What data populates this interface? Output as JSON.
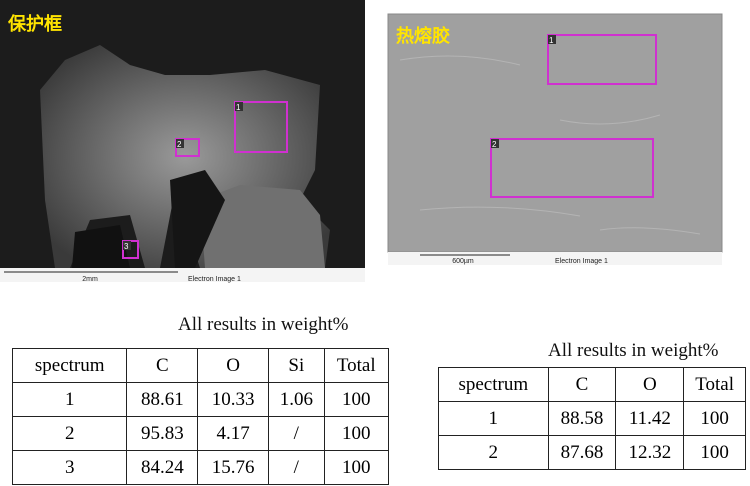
{
  "left_image": {
    "title": "保护框",
    "scale": "2mm",
    "caption": "Electron Image 1",
    "regions": [
      "1",
      "2",
      "3"
    ]
  },
  "right_image": {
    "title": "热熔胶",
    "scale": "600µm",
    "caption": "Electron Image 1",
    "regions": [
      "1",
      "2"
    ]
  },
  "table_left": {
    "caption": "All results in weight%",
    "header": [
      "spectrum",
      "C",
      "O",
      "Si",
      "Total"
    ],
    "rows": [
      [
        1,
        88.61,
        10.33,
        1.06,
        100
      ],
      [
        2,
        95.83,
        4.17,
        "/",
        100
      ],
      [
        3,
        84.24,
        15.76,
        "/",
        100
      ]
    ]
  },
  "table_right": {
    "caption": "All results in weight%",
    "header": [
      "spectrum",
      "C",
      "O",
      "Total"
    ],
    "rows": [
      [
        1,
        88.58,
        11.42,
        100
      ],
      [
        2,
        87.68,
        12.32,
        100
      ]
    ]
  }
}
